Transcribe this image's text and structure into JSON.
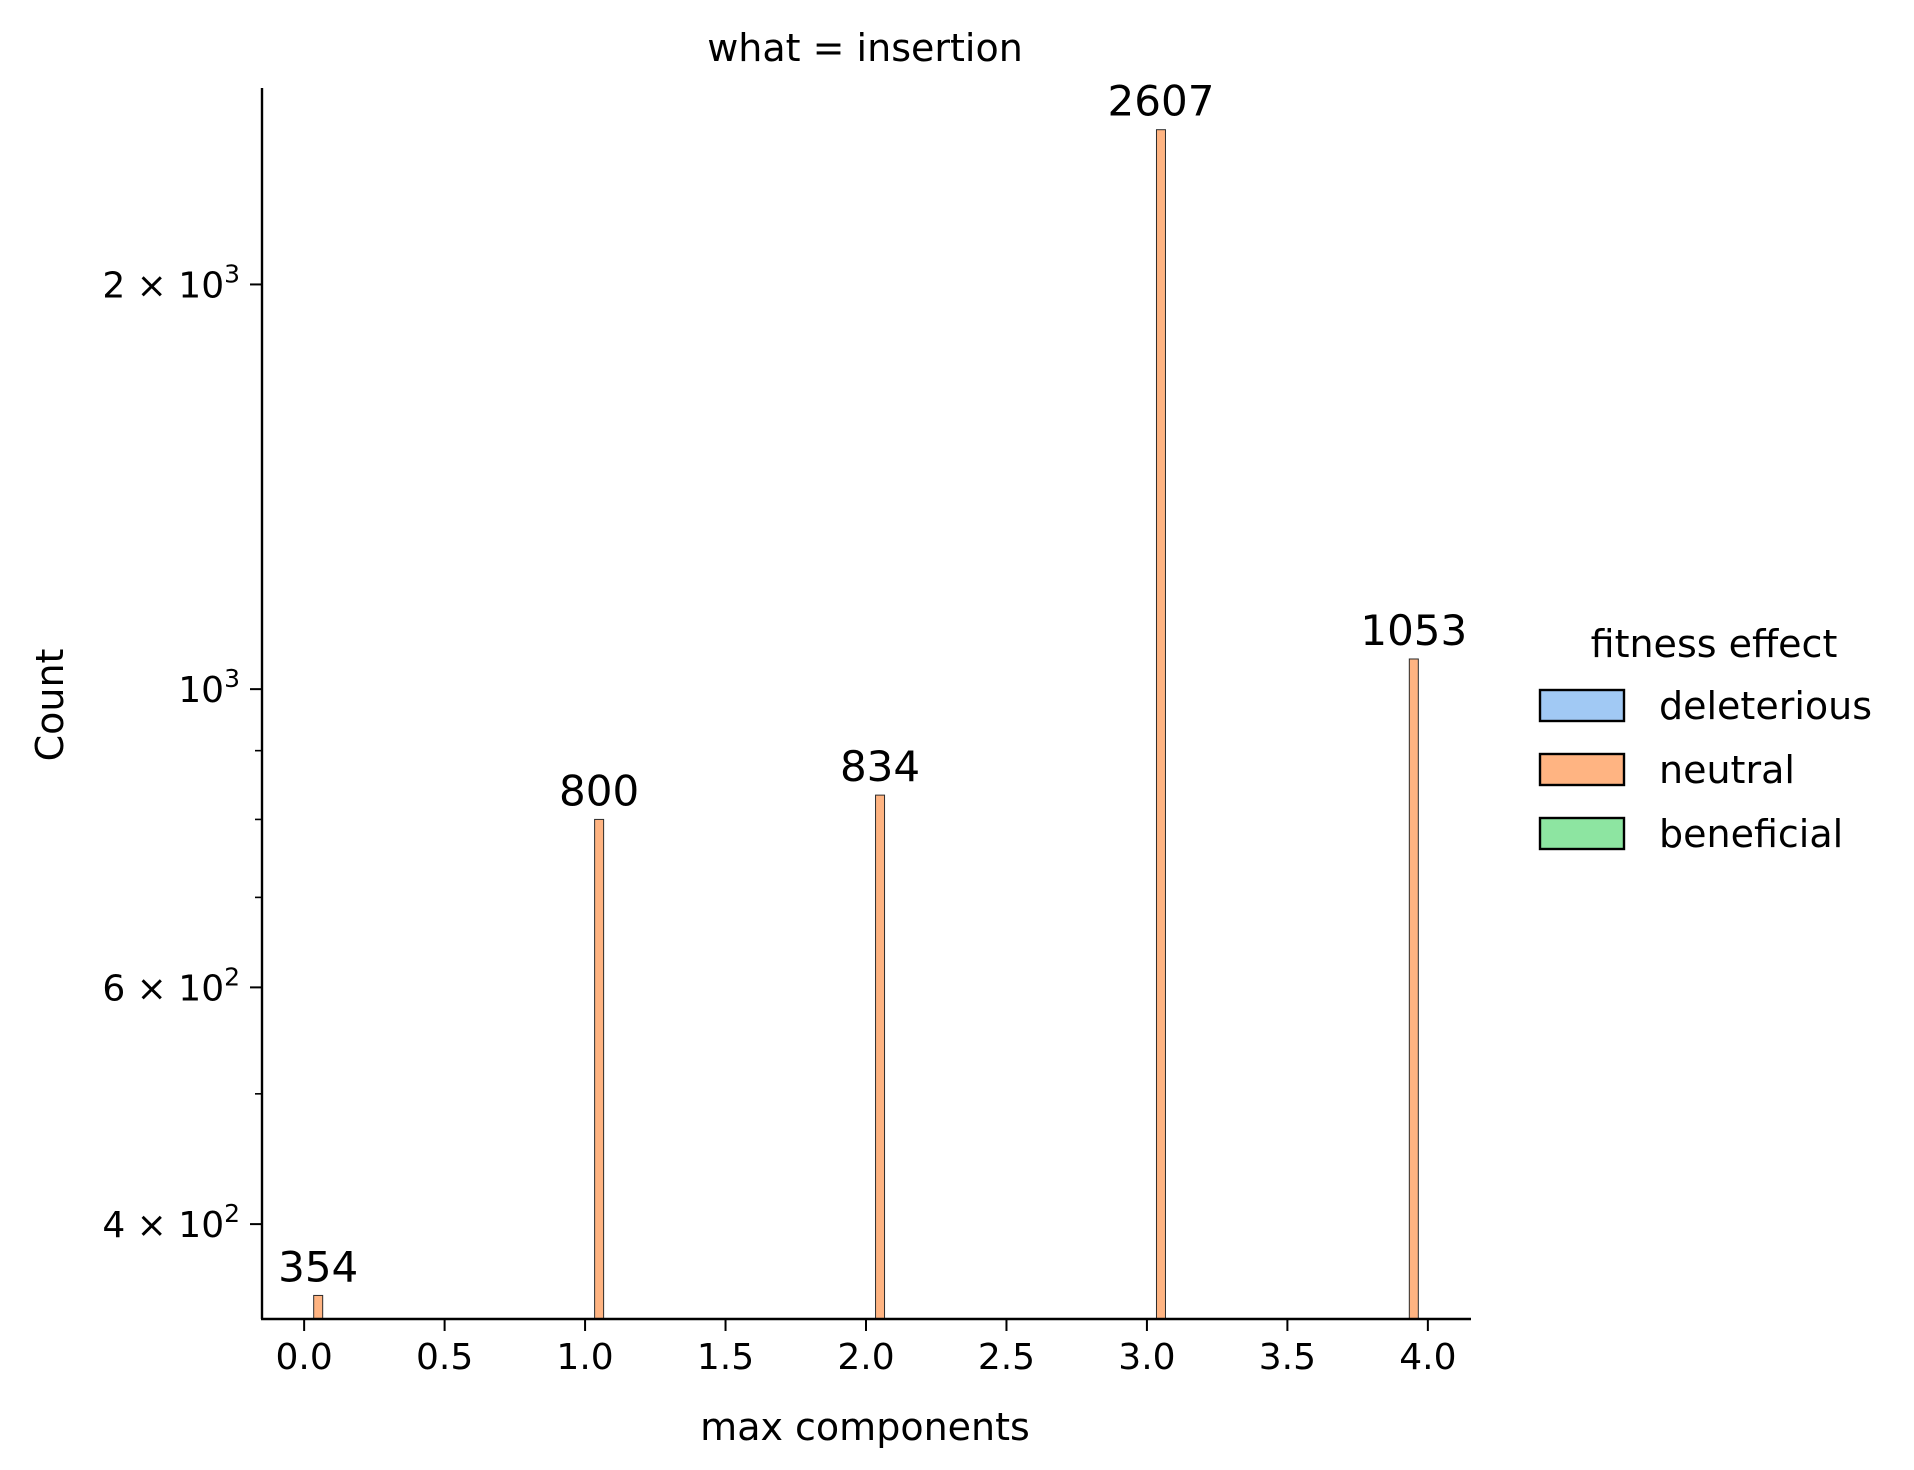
{
  "chart_data": {
    "type": "bar",
    "title": "what = insertion",
    "xlabel": "max components",
    "ylabel": "Count",
    "yscale": "log",
    "xlim": [
      -0.15,
      4.15
    ],
    "ylim": [
      340,
      2800
    ],
    "grid": false,
    "x_ticks": [
      0.0,
      0.5,
      1.0,
      1.5,
      2.0,
      2.5,
      3.0,
      3.5,
      4.0
    ],
    "x_tick_labels": [
      "0.0",
      "0.5",
      "1.0",
      "1.5",
      "2.0",
      "2.5",
      "3.0",
      "3.5",
      "4.0"
    ],
    "y_major_ticks": [
      {
        "value": 400,
        "mantissa": "4",
        "exp": "2"
      },
      {
        "value": 600,
        "mantissa": "6",
        "exp": "2"
      },
      {
        "value": 1000,
        "mantissa": "",
        "exp": "3"
      },
      {
        "value": 2000,
        "mantissa": "2",
        "exp": "3"
      }
    ],
    "y_minor_ticks": [
      500,
      700,
      800,
      900
    ],
    "legend": {
      "title": "fitness effect",
      "placement": "right",
      "entries": [
        {
          "label": "deleterious",
          "color": "#a1c9f4"
        },
        {
          "label": "neutral",
          "color": "#ffb482"
        },
        {
          "label": "beneficial",
          "color": "#8de5a1"
        }
      ]
    },
    "series": [
      {
        "name": "neutral",
        "color": "#ffb482",
        "bars": [
          {
            "x": 0.05,
            "value": 354,
            "label": "354"
          },
          {
            "x": 1.05,
            "value": 800,
            "label": "800"
          },
          {
            "x": 2.05,
            "value": 834,
            "label": "834"
          },
          {
            "x": 3.05,
            "value": 2607,
            "label": "2607"
          },
          {
            "x": 3.95,
            "value": 1053,
            "label": "1053"
          }
        ]
      }
    ]
  }
}
